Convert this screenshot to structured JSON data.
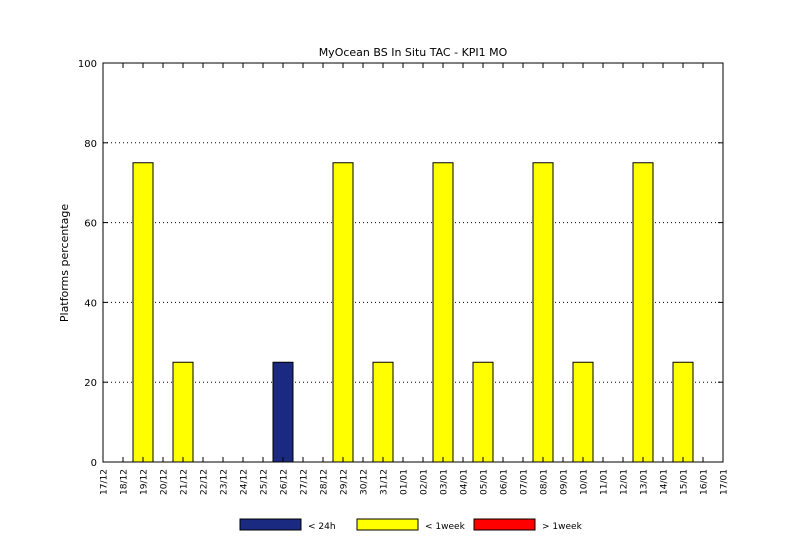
{
  "chart_data": {
    "type": "bar",
    "title": "MyOcean  BS In Situ TAC - KPI1  MO",
    "xlabel": "",
    "ylabel": "Platforms percentage",
    "ylim": [
      0,
      100
    ],
    "yticks": [
      "0",
      "20",
      "40",
      "60",
      "80",
      "100"
    ],
    "grid": "horizontal-dotted",
    "legend_placement": "bottom",
    "categories": [
      "17/12",
      "18/12",
      "19/12",
      "20/12",
      "21/12",
      "22/12",
      "23/12",
      "24/12",
      "25/12",
      "26/12",
      "27/12",
      "28/12",
      "29/12",
      "30/12",
      "31/12",
      "01/01",
      "02/01",
      "03/01",
      "04/01",
      "05/01",
      "06/01",
      "07/01",
      "08/01",
      "09/01",
      "10/01",
      "11/01",
      "12/01",
      "13/01",
      "14/01",
      "15/01",
      "16/01",
      "17/01"
    ],
    "series": [
      {
        "name": "< 24h",
        "color": "#1a2a80",
        "values": [
          0,
          0,
          0,
          0,
          0,
          0,
          0,
          0,
          0,
          25,
          0,
          0,
          0,
          0,
          0,
          0,
          0,
          0,
          0,
          0,
          0,
          0,
          0,
          0,
          0,
          0,
          0,
          0,
          0,
          0,
          0,
          0
        ]
      },
      {
        "name": "< 1week",
        "color": "#ffff00",
        "values": [
          0,
          0,
          75,
          0,
          25,
          0,
          0,
          0,
          0,
          0,
          0,
          0,
          75,
          0,
          25,
          0,
          0,
          75,
          0,
          25,
          0,
          0,
          75,
          0,
          25,
          0,
          0,
          75,
          0,
          25,
          0,
          0
        ]
      },
      {
        "name": "> 1week",
        "color": "#ff0000",
        "values": [
          0,
          0,
          0,
          0,
          0,
          0,
          0,
          0,
          0,
          0,
          0,
          0,
          0,
          0,
          0,
          0,
          0,
          0,
          0,
          0,
          0,
          0,
          0,
          0,
          0,
          0,
          0,
          0,
          0,
          0,
          0,
          0
        ]
      }
    ]
  }
}
